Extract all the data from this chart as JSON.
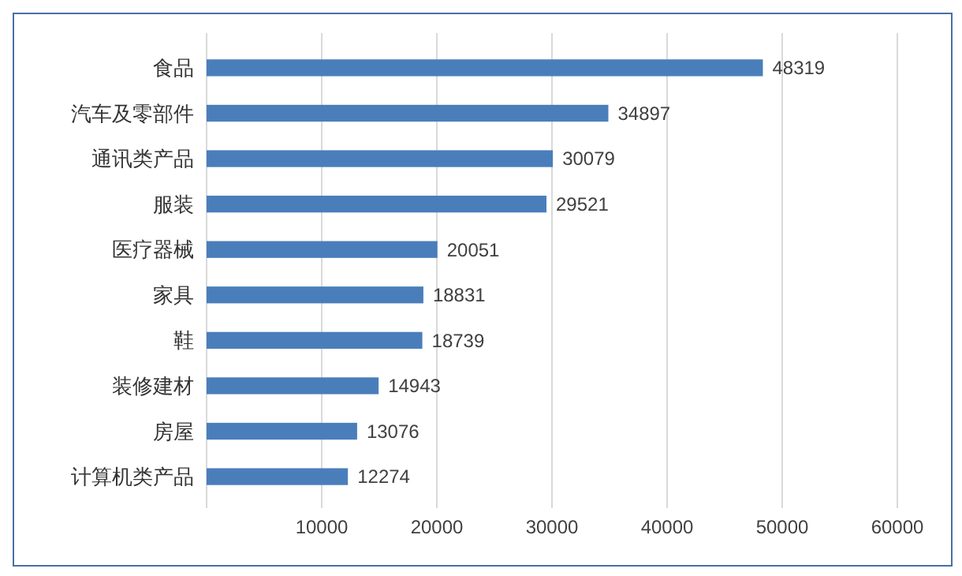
{
  "chart_data": {
    "type": "bar",
    "orientation": "horizontal",
    "categories": [
      "食品",
      "汽车及零部件",
      "通讯类产品",
      "服装",
      "医疗器械",
      "家具",
      "鞋",
      "装修建材",
      "房屋",
      "计算机类产品"
    ],
    "values": [
      48319,
      34897,
      30079,
      29521,
      20051,
      18831,
      18739,
      14943,
      13076,
      12274
    ],
    "color": "#4a7ebb",
    "xlim": [
      0,
      60000
    ],
    "xticks": [
      {
        "value": 0,
        "label": null
      },
      10000,
      20000,
      30000,
      40000,
      50000,
      60000
    ],
    "grid": "x",
    "data_labels": true
  }
}
